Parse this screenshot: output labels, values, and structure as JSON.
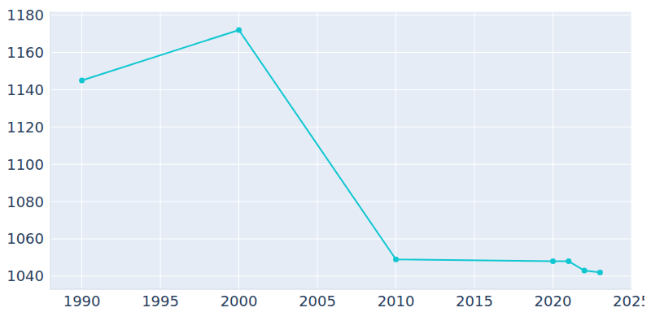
{
  "chart_data": {
    "type": "line",
    "x": [
      1990,
      2000,
      2010,
      2020,
      2021,
      2022,
      2023
    ],
    "values": [
      1145,
      1172,
      1049,
      1048,
      1048,
      1043,
      1042
    ],
    "color": "#11c7d1",
    "marker": "circle",
    "xlim": [
      1988,
      2025
    ],
    "xticks": [
      1990,
      1995,
      2000,
      2005,
      2010,
      2015,
      2020,
      2025
    ],
    "ylim": [
      1033,
      1182
    ],
    "yticks": [
      1040,
      1060,
      1080,
      1100,
      1120,
      1140,
      1160,
      1180
    ],
    "grid": true
  }
}
